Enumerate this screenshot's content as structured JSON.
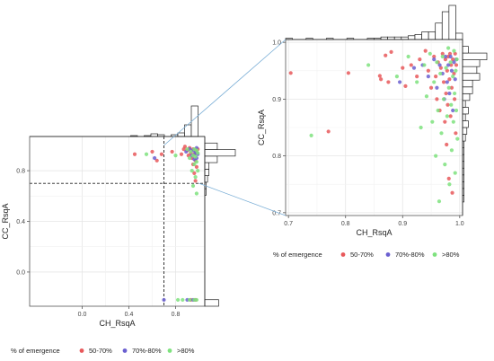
{
  "chart_data": [
    {
      "type": "scatter",
      "panel": "full-range",
      "xlabel": "CH_RsqA",
      "ylabel": "CC_RsqA",
      "xlim": [
        -0.45,
        1.05
      ],
      "ylim": [
        -0.27,
        1.07
      ],
      "x_ticks": [
        "0.0",
        "0.4",
        "0.8"
      ],
      "x_tick_values": [
        0.0,
        0.4,
        0.8
      ],
      "y_ticks": [
        "0.0",
        "0.4",
        "0.8"
      ],
      "y_tick_values": [
        0.0,
        0.4,
        0.8
      ],
      "grid": true,
      "threshold_lines": {
        "x": 0.7,
        "y": 0.7
      },
      "marginal_histograms": [
        "top",
        "right"
      ],
      "legend_title": "% of emergence",
      "legend_position": "bottom",
      "series": [
        {
          "name": "50-70%",
          "color": "#e8585a",
          "points": [
            [
              0.45,
              0.93
            ],
            [
              0.6,
              0.95
            ],
            [
              0.64,
              0.88
            ],
            [
              0.68,
              0.93
            ],
            [
              0.77,
              0.95
            ],
            [
              0.85,
              0.93
            ],
            [
              0.87,
              0.97
            ],
            [
              0.88,
              0.99
            ],
            [
              0.9,
              0.96
            ],
            [
              0.91,
              0.92
            ],
            [
              0.92,
              0.98
            ],
            [
              0.93,
              0.94
            ],
            [
              0.94,
              0.9
            ],
            [
              0.95,
              0.97
            ],
            [
              0.95,
              0.85
            ],
            [
              0.96,
              0.93
            ],
            [
              0.96,
              0.78
            ],
            [
              0.97,
              0.96
            ],
            [
              0.97,
              0.88
            ],
            [
              0.97,
              0.72
            ],
            [
              0.98,
              0.95
            ],
            [
              0.98,
              0.83
            ],
            [
              0.99,
              0.97
            ],
            [
              0.93,
              -0.22
            ],
            [
              0.97,
              -0.22
            ]
          ]
        },
        {
          "name": "70%-80%",
          "color": "#6a5fd0",
          "points": [
            [
              0.62,
              0.9
            ],
            [
              0.89,
              0.95
            ],
            [
              0.92,
              0.97
            ],
            [
              0.94,
              0.92
            ],
            [
              0.95,
              0.96
            ],
            [
              0.96,
              0.89
            ],
            [
              0.97,
              0.94
            ],
            [
              0.98,
              0.9
            ],
            [
              0.98,
              0.98
            ],
            [
              0.99,
              0.93
            ],
            [
              0.7,
              -0.22
            ],
            [
              0.9,
              -0.22
            ],
            [
              0.95,
              -0.22
            ]
          ]
        },
        {
          "name": ">80%",
          "color": "#7ee27e",
          "points": [
            [
              0.55,
              0.93
            ],
            [
              0.8,
              0.92
            ],
            [
              0.9,
              0.97
            ],
            [
              0.92,
              0.9
            ],
            [
              0.93,
              0.95
            ],
            [
              0.94,
              0.8
            ],
            [
              0.95,
              0.92
            ],
            [
              0.95,
              0.68
            ],
            [
              0.96,
              0.97
            ],
            [
              0.96,
              0.85
            ],
            [
              0.97,
              0.91
            ],
            [
              0.97,
              0.75
            ],
            [
              0.98,
              0.96
            ],
            [
              0.98,
              0.87
            ],
            [
              0.98,
              0.62
            ],
            [
              0.99,
              0.94
            ],
            [
              0.99,
              0.8
            ],
            [
              0.82,
              -0.22
            ],
            [
              0.86,
              -0.22
            ],
            [
              0.92,
              -0.22
            ],
            [
              0.96,
              -0.22
            ],
            [
              0.98,
              -0.22
            ]
          ]
        }
      ]
    },
    {
      "type": "scatter",
      "panel": "zoomed",
      "xlabel": "CH_RsqA",
      "ylabel": "CC_RsqA",
      "xlim": [
        0.695,
        1.005
      ],
      "ylim": [
        0.695,
        1.005
      ],
      "x_ticks": [
        "0.7",
        "0.8",
        "0.9",
        "1.0"
      ],
      "x_tick_values": [
        0.7,
        0.8,
        0.9,
        1.0
      ],
      "y_ticks": [
        "0.7",
        "0.8",
        "0.9",
        "1.0"
      ],
      "y_tick_values": [
        0.7,
        0.8,
        0.9,
        1.0
      ],
      "grid": true,
      "marginal_histograms": [
        "top",
        "right"
      ],
      "legend_title": "% of emergence",
      "legend_position": "bottom",
      "series": [
        {
          "name": "50-70%",
          "color": "#e8585a",
          "points": [
            [
              0.704,
              0.946
            ],
            [
              0.77,
              0.843
            ],
            [
              0.805,
              0.946
            ],
            [
              0.86,
              0.941
            ],
            [
              0.862,
              0.935
            ],
            [
              0.87,
              0.977
            ],
            [
              0.875,
              0.93
            ],
            [
              0.88,
              0.983
            ],
            [
              0.9,
              0.955
            ],
            [
              0.905,
              0.923
            ],
            [
              0.915,
              0.96
            ],
            [
              0.925,
              0.94
            ],
            [
              0.93,
              0.97
            ],
            [
              0.94,
              0.985
            ],
            [
              0.945,
              0.95
            ],
            [
              0.95,
              0.92
            ],
            [
              0.955,
              0.975
            ],
            [
              0.958,
              0.94
            ],
            [
              0.96,
              0.9
            ],
            [
              0.962,
              0.965
            ],
            [
              0.965,
              0.88
            ],
            [
              0.967,
              0.955
            ],
            [
              0.97,
              0.98
            ],
            [
              0.972,
              0.93
            ],
            [
              0.974,
              0.86
            ],
            [
              0.975,
              0.97
            ],
            [
              0.976,
              0.91
            ],
            [
              0.977,
              0.82
            ],
            [
              0.978,
              0.95
            ],
            [
              0.979,
              0.89
            ],
            [
              0.98,
              0.975
            ],
            [
              0.981,
              0.76
            ],
            [
              0.982,
              0.935
            ],
            [
              0.983,
              0.98
            ],
            [
              0.984,
              0.87
            ],
            [
              0.985,
              0.96
            ],
            [
              0.986,
              0.92
            ],
            [
              0.987,
              0.735
            ],
            [
              0.988,
              0.97
            ],
            [
              0.99,
              0.945
            ],
            [
              0.991,
              0.9
            ],
            [
              0.992,
              0.98
            ],
            [
              0.993,
              0.84
            ],
            [
              0.994,
              0.96
            ]
          ]
        },
        {
          "name": "70%-80%",
          "color": "#6a5fd0",
          "points": [
            [
              0.895,
              0.93
            ],
            [
              0.92,
              0.955
            ],
            [
              0.935,
              0.96
            ],
            [
              0.945,
              0.94
            ],
            [
              0.955,
              0.97
            ],
            [
              0.96,
              0.92
            ],
            [
              0.965,
              0.96
            ],
            [
              0.97,
              0.945
            ],
            [
              0.973,
              0.9
            ],
            [
              0.975,
              0.975
            ],
            [
              0.978,
              0.93
            ],
            [
              0.98,
              0.96
            ],
            [
              0.982,
              0.91
            ],
            [
              0.984,
              0.975
            ],
            [
              0.986,
              0.95
            ],
            [
              0.988,
              0.88
            ],
            [
              0.99,
              0.965
            ],
            [
              0.992,
              0.935
            ],
            [
              0.994,
              0.97
            ]
          ]
        },
        {
          "name": ">80%",
          "color": "#7ee27e",
          "points": [
            [
              0.74,
              0.836
            ],
            [
              0.84,
              0.96
            ],
            [
              0.89,
              0.94
            ],
            [
              0.91,
              0.975
            ],
            [
              0.925,
              0.93
            ],
            [
              0.932,
              0.85
            ],
            [
              0.938,
              0.96
            ],
            [
              0.942,
              0.905
            ],
            [
              0.948,
              0.98
            ],
            [
              0.952,
              0.86
            ],
            [
              0.955,
              0.93
            ],
            [
              0.958,
              0.8
            ],
            [
              0.96,
              0.965
            ],
            [
              0.962,
              0.88
            ],
            [
              0.964,
              0.72
            ],
            [
              0.966,
              0.945
            ],
            [
              0.968,
              0.84
            ],
            [
              0.97,
              0.975
            ],
            [
              0.972,
              0.9
            ],
            [
              0.974,
              0.785
            ],
            [
              0.976,
              0.955
            ],
            [
              0.978,
              0.87
            ],
            [
              0.98,
              0.99
            ],
            [
              0.981,
              0.92
            ],
            [
              0.982,
              0.75
            ],
            [
              0.984,
              0.965
            ],
            [
              0.985,
              0.89
            ],
            [
              0.986,
              0.81
            ],
            [
              0.988,
              0.94
            ],
            [
              0.989,
              0.86
            ],
            [
              0.99,
              0.985
            ],
            [
              0.991,
              0.91
            ],
            [
              0.992,
              0.77
            ],
            [
              0.993,
              0.95
            ],
            [
              0.994,
              0.88
            ],
            [
              0.995,
              0.97
            ],
            [
              0.996,
              0.83
            ]
          ]
        }
      ]
    }
  ]
}
